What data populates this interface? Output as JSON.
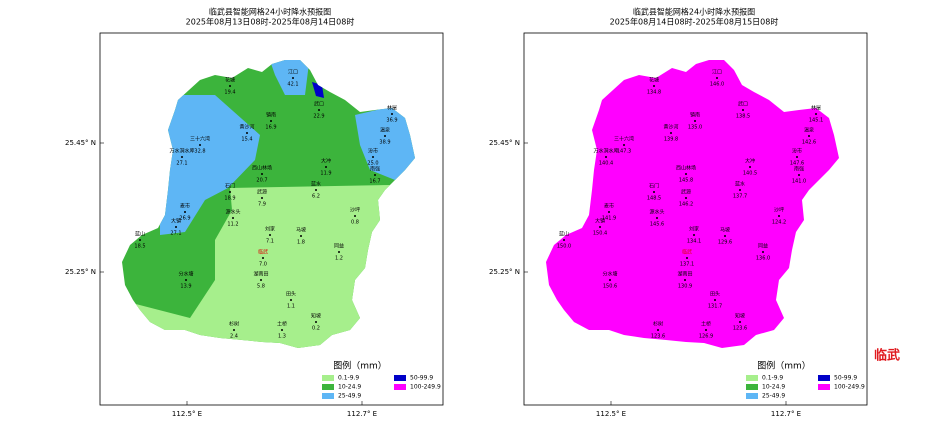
{
  "maps": [
    {
      "title": "临武县智能网格24小时降水预报图",
      "period": "2025年08月13日08时-2025年08月14日08时",
      "stations": [
        {
          "name": "花塘",
          "value": "19.4"
        },
        {
          "name": "江口",
          "value": "42.1"
        },
        {
          "name": "镇南",
          "value": "16.9"
        },
        {
          "name": "武口",
          "value": "22.9"
        },
        {
          "name": "林屋",
          "value": "36.9"
        },
        {
          "name": "温泉",
          "value": "38.9"
        },
        {
          "name": "三十六湾",
          "value": "32.8"
        },
        {
          "name": "万水洞水库",
          "value": "27.1"
        },
        {
          "name": "黄沙河",
          "value": "15.4"
        },
        {
          "name": "西山林场",
          "value": "20.7"
        },
        {
          "name": "大冲",
          "value": "11.9"
        },
        {
          "name": "汾市",
          "value": "25.0"
        },
        {
          "name": "南强",
          "value": "16.7"
        },
        {
          "name": "蓝水",
          "value": "6.2"
        },
        {
          "name": "石门",
          "value": "18.9"
        },
        {
          "name": "武源",
          "value": "7.9"
        },
        {
          "name": "麦市",
          "value": "26.9"
        },
        {
          "name": "大镇",
          "value": "27.1"
        },
        {
          "name": "源水头",
          "value": "11.2"
        },
        {
          "name": "刘家",
          "value": "7.1"
        },
        {
          "name": "马坡",
          "value": "1.8"
        },
        {
          "name": "沙坪",
          "value": "0.8"
        },
        {
          "name": "蓝山",
          "value": "18.5"
        },
        {
          "name": "同益",
          "value": "1.2"
        },
        {
          "name": "临武",
          "value": "7.0"
        },
        {
          "name": "湖南田",
          "value": "5.8"
        },
        {
          "name": "分水塘",
          "value": "13.9"
        },
        {
          "name": "田头",
          "value": "1.1"
        },
        {
          "name": "知坡",
          "value": "0.2"
        },
        {
          "name": "杉树",
          "value": "2.4"
        },
        {
          "name": "土桥",
          "value": "1.3"
        }
      ]
    },
    {
      "title": "临武县智能网格24小时降水预报图",
      "period": "2025年08月14日08时-2025年08月15日08时",
      "stations": [
        {
          "name": "花塘",
          "value": "134.8"
        },
        {
          "name": "江口",
          "value": "146.0"
        },
        {
          "name": "镇南",
          "value": "135.0"
        },
        {
          "name": "武口",
          "value": "138.5"
        },
        {
          "name": "林屋",
          "value": "145.1"
        },
        {
          "name": "温泉",
          "value": "142.6"
        },
        {
          "name": "三十六湾",
          "value": "147.3"
        },
        {
          "name": "万水洞水库",
          "value": "140.4"
        },
        {
          "name": "黄沙河",
          "value": "139.8"
        },
        {
          "name": "西山林场",
          "value": "145.8"
        },
        {
          "name": "大冲",
          "value": "140.5"
        },
        {
          "name": "汾市",
          "value": "147.6"
        },
        {
          "name": "南强",
          "value": "141.0"
        },
        {
          "name": "蓝水",
          "value": "137.7"
        },
        {
          "name": "石门",
          "value": "148.5"
        },
        {
          "name": "武源",
          "value": "146.2"
        },
        {
          "name": "麦市",
          "value": "141.9"
        },
        {
          "name": "大镇",
          "value": "150.4"
        },
        {
          "name": "源水头",
          "value": "145.6"
        },
        {
          "name": "刘家",
          "value": "134.1"
        },
        {
          "name": "马坡",
          "value": "129.6"
        },
        {
          "name": "沙坪",
          "value": "124.2"
        },
        {
          "name": "蓝山",
          "value": "150.0"
        },
        {
          "name": "同益",
          "value": "136.0"
        },
        {
          "name": "临武",
          "value": "137.1"
        },
        {
          "name": "湖南田",
          "value": "130.9"
        },
        {
          "name": "分水塘",
          "value": "150.6"
        },
        {
          "name": "田头",
          "value": "131.7"
        },
        {
          "name": "知坡",
          "value": "123.6"
        },
        {
          "name": "杉树",
          "value": "123.6"
        },
        {
          "name": "土桥",
          "value": "126.9"
        }
      ]
    }
  ],
  "axes": {
    "lat": [
      "25.45° N",
      "25.25° N"
    ],
    "lon": [
      "112.5° E",
      "112.7° E"
    ]
  },
  "legend": {
    "title": "图例（mm）",
    "items": [
      {
        "label": "0.1-9.9",
        "color": "#a6ef8c"
      },
      {
        "label": "10-24.9",
        "color": "#3cb43c"
      },
      {
        "label": "25-49.9",
        "color": "#5eb6f5"
      },
      {
        "label": "50-99.9",
        "color": "#0000c8"
      },
      {
        "label": "100-249.9",
        "color": "#ff00ff"
      }
    ]
  },
  "logo": "临武"
}
